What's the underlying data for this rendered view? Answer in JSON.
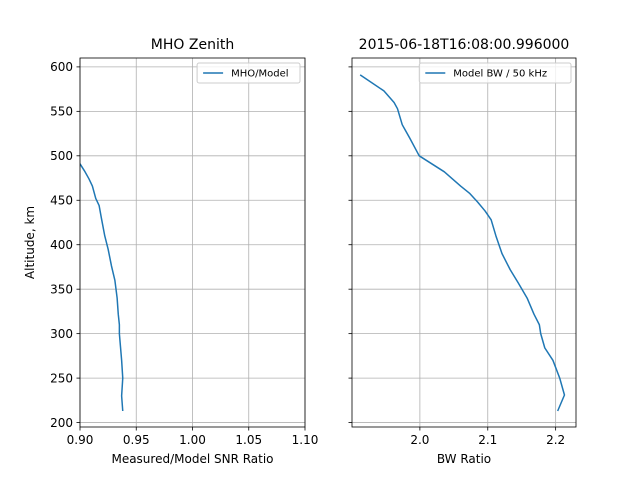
{
  "figure_background": "#ffffff",
  "chart_data": [
    {
      "type": "line",
      "title": "MHO Zenith",
      "xlabel": "Measured/Model SNR Ratio",
      "ylabel": "Altitude, km",
      "xlim": [
        0.9,
        1.1
      ],
      "ylim": [
        195,
        610
      ],
      "xticks": [
        0.9,
        0.95,
        1.0,
        1.05,
        1.1
      ],
      "xtick_labels": [
        "0.90",
        "0.95",
        "1.00",
        "1.05",
        "1.10"
      ],
      "yticks": [
        200,
        250,
        300,
        350,
        400,
        450,
        500,
        550,
        600
      ],
      "ytick_labels": [
        "200",
        "250",
        "300",
        "350",
        "400",
        "450",
        "500",
        "550",
        "600"
      ],
      "grid": true,
      "legend_position": "upper right",
      "series": [
        {
          "name": "MHO/Model",
          "color": "#1f77b4",
          "x": [
            0.938,
            0.937,
            0.938,
            0.937,
            0.936,
            0.935,
            0.935,
            0.934,
            0.933,
            0.931,
            0.928,
            0.925,
            0.922,
            0.919,
            0.917,
            0.914,
            0.911,
            0.908,
            0.904,
            0.9
          ],
          "y": [
            213,
            230,
            250,
            270,
            285,
            300,
            310,
            322,
            340,
            360,
            376,
            395,
            410,
            430,
            444,
            452,
            466,
            474,
            483,
            491
          ]
        }
      ]
    },
    {
      "type": "line",
      "title": "2015-06-18T16:08:00.996000",
      "xlabel": "BW Ratio",
      "ylabel": "",
      "xlim": [
        1.9,
        2.23
      ],
      "ylim": [
        195,
        610
      ],
      "xticks": [
        2.0,
        2.1,
        2.2
      ],
      "xtick_labels": [
        "2.0",
        "2.1",
        "2.2"
      ],
      "yticks": [
        200,
        250,
        300,
        350,
        400,
        450,
        500,
        550,
        600
      ],
      "ytick_labels": [
        "200",
        "250",
        "300",
        "350",
        "400",
        "450",
        "500",
        "550",
        "600"
      ],
      "grid": true,
      "legend_position": "upper right",
      "series": [
        {
          "name": "Model BW / 50 kHz",
          "color": "#1f77b4",
          "x": [
            2.203,
            2.213,
            2.206,
            2.196,
            2.184,
            2.178,
            2.176,
            2.168,
            2.158,
            2.145,
            2.133,
            2.121,
            2.112,
            2.105,
            2.096,
            2.085,
            2.073,
            2.06,
            2.048,
            2.036,
            1.999,
            1.985,
            1.974,
            1.967,
            1.962,
            1.947,
            1.912
          ],
          "y": [
            213,
            231,
            250,
            270,
            284,
            300,
            310,
            322,
            340,
            357,
            372,
            390,
            410,
            428,
            438,
            448,
            458,
            466,
            474,
            482,
            500,
            520,
            535,
            553,
            560,
            573,
            591
          ]
        }
      ]
    }
  ]
}
